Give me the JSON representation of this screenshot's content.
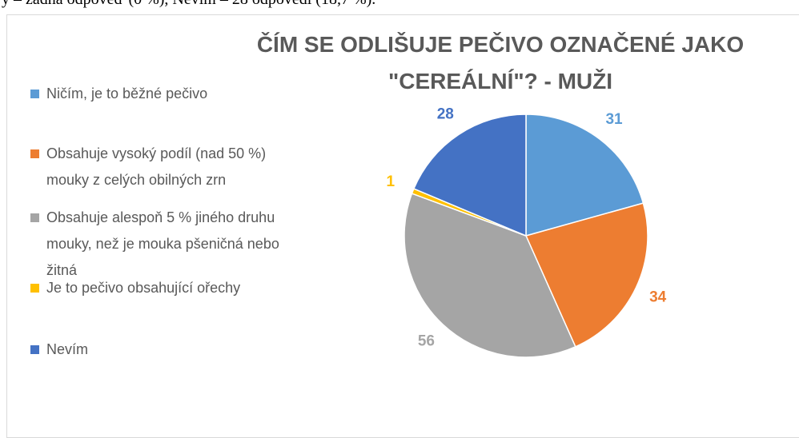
{
  "caption": "y – žádná odpověď (0 %), Nevím – 28 odpovědí (18,7 %).",
  "chart_data": {
    "type": "pie",
    "title_lines": [
      "ČÍM SE ODLIŠUJE PEČIVO OZNAČENÉ JAKO",
      "\"CEREÁLNÍ\"? - MUŽI"
    ],
    "categories": [
      "Ničím, je to běžné pečivo",
      "Obsahuje vysoký podíl (nad 50 %) mouky z celých obilných zrn",
      "Obsahuje alespoň 5 % jiného druhu mouky, než je mouka pšeničná nebo žitná",
      "Je to pečivo obsahující ořechy",
      "Nevím"
    ],
    "values": [
      31,
      34,
      56,
      1,
      28
    ],
    "colors": [
      "#5b9bd5",
      "#ed7d31",
      "#a5a5a5",
      "#ffc000",
      "#4472c4"
    ],
    "legend": "left"
  }
}
